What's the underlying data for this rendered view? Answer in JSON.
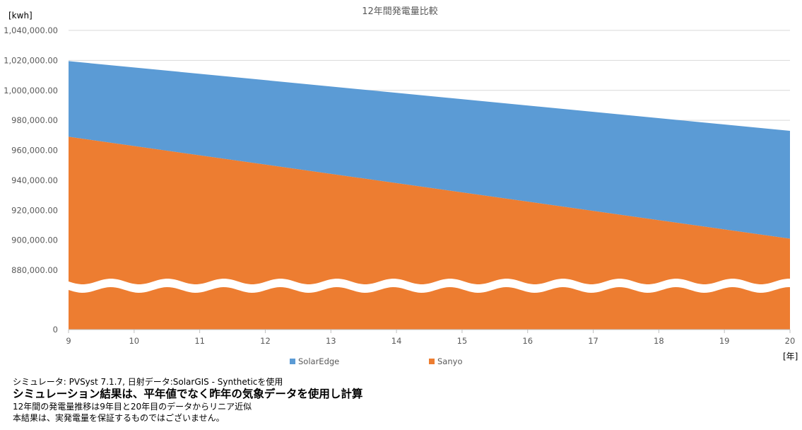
{
  "chart_data": {
    "type": "area",
    "title": "12年間発電量比較",
    "ylabel": "[kwh]",
    "xlabel": "[年]",
    "x": [
      9,
      10,
      11,
      12,
      13,
      14,
      15,
      16,
      17,
      18,
      19,
      20
    ],
    "y_ticks": [
      "1,040,000.00",
      "1,020,000.00",
      "1,000,000.00",
      "980,000.00",
      "960,000.00",
      "940,000.00",
      "920,000.00",
      "900,000.00",
      "880,000.00",
      "0"
    ],
    "y_tick_values": [
      1040000,
      1020000,
      1000000,
      980000,
      960000,
      940000,
      920000,
      900000,
      880000,
      0
    ],
    "ylim": [
      0,
      1040000
    ],
    "axis_break": true,
    "grid": true,
    "legend_position": "bottom",
    "series": [
      {
        "name": "SolarEdge",
        "color": "#5b9bd5",
        "start": 1019500,
        "end": 973000
      },
      {
        "name": "Sanyo",
        "color": "#ed7d31",
        "start": 969000,
        "end": 901000
      }
    ]
  },
  "notes": [
    "シミュレータ: PVSyst 7.1.7, 日射データ:SolarGIS - Syntheticを使用",
    "シミュレーション結果は、平年値でなく昨年の気象データを使用し計算",
    "12年間の発電量推移は9年目と20年目のデータからリニア近似",
    "本結果は、実発電量を保証するものではございません。"
  ]
}
